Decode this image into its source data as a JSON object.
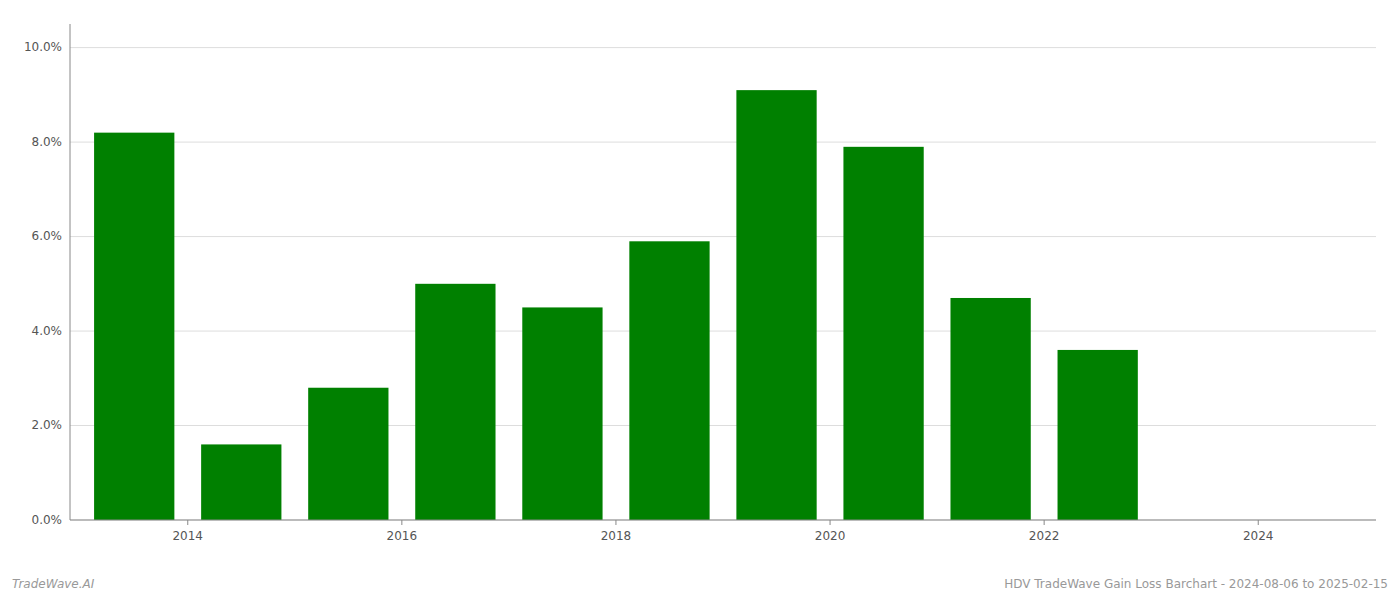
{
  "chart_data": {
    "type": "bar",
    "x": [
      2013,
      2014,
      2015,
      2016,
      2017,
      2018,
      2019,
      2020,
      2021,
      2022
    ],
    "values": [
      0.082,
      0.016,
      0.028,
      0.05,
      0.045,
      0.059,
      0.091,
      0.079,
      0.047,
      0.036
    ],
    "color": "#008000",
    "xlim": [
      2012.4,
      2024.6
    ],
    "xticks": [
      {
        "value": 2013.5,
        "label": "2014"
      },
      {
        "value": 2015.5,
        "label": "2016"
      },
      {
        "value": 2017.5,
        "label": "2018"
      },
      {
        "value": 2019.5,
        "label": "2020"
      },
      {
        "value": 2021.5,
        "label": "2022"
      },
      {
        "value": 2023.5,
        "label": "2024"
      }
    ],
    "ylim": [
      0.0,
      0.105
    ],
    "yticks": [
      {
        "value": 0.0,
        "label": "0.0%"
      },
      {
        "value": 0.02,
        "label": "2.0%"
      },
      {
        "value": 0.04,
        "label": "4.0%"
      },
      {
        "value": 0.06,
        "label": "6.0%"
      },
      {
        "value": 0.08,
        "label": "8.0%"
      },
      {
        "value": 0.1,
        "label": "10.0%"
      }
    ],
    "grid": true,
    "annotations": [
      "TradeWave.AI",
      "HDV TradeWave Gain Loss Barchart - 2024-08-06 to 2025-02-15"
    ]
  }
}
